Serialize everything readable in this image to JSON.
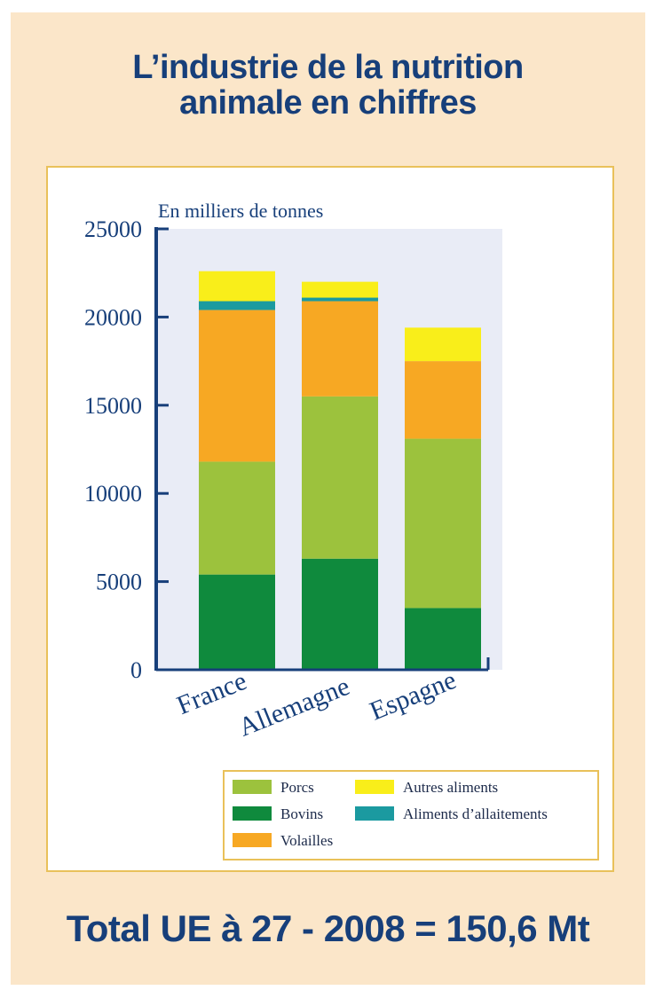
{
  "title": {
    "line1": "L’industrie de la nutrition",
    "line2": "animale en chiffres"
  },
  "footer": "Total UE à 27 - 2008 = 150,6 Mt",
  "colors": {
    "card_bg": "#fbe6c9",
    "title": "#173f7a",
    "plot_bg": "#e9ecf6",
    "axis": "#173f7a",
    "legend_border": "#e9c15a"
  },
  "chart_data": {
    "type": "bar",
    "stacked": true,
    "unit_label": "En milliers de tonnes",
    "categories": [
      "France",
      "Allemagne",
      "Espagne"
    ],
    "ylim": [
      0,
      25000
    ],
    "yticks": [
      0,
      5000,
      10000,
      15000,
      20000,
      25000
    ],
    "grid": false,
    "legend_position": "bottom-right",
    "series": [
      {
        "name": "Bovins",
        "color": "#0f8a3d",
        "values": [
          5400,
          6300,
          3500
        ]
      },
      {
        "name": "Porcs",
        "color": "#9cc23d",
        "values": [
          6400,
          9200,
          9600
        ]
      },
      {
        "name": "Volailles",
        "color": "#f7a823",
        "values": [
          8600,
          5400,
          4400
        ]
      },
      {
        "name": "Aliments d’allaitements",
        "color": "#1b9aa0",
        "values": [
          500,
          200,
          0
        ]
      },
      {
        "name": "Autres aliments",
        "color": "#f9ee1a",
        "values": [
          1700,
          900,
          1900
        ]
      }
    ]
  }
}
